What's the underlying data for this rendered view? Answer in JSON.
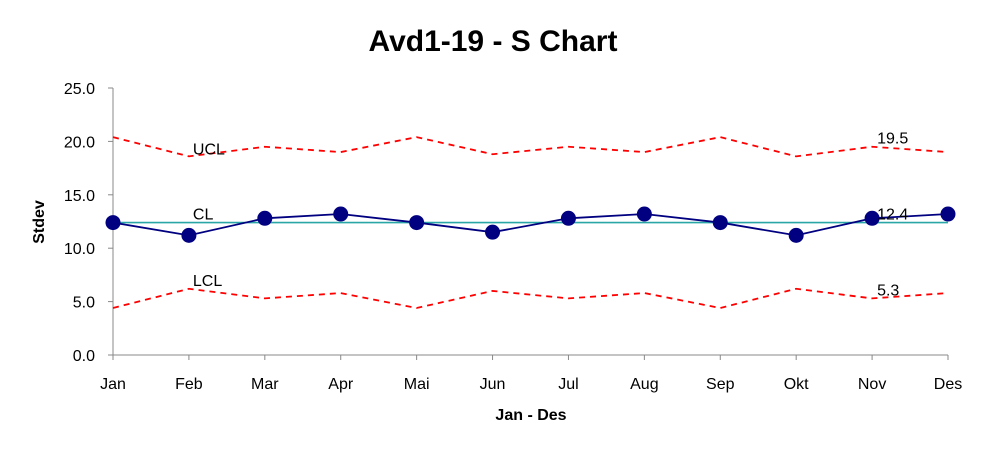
{
  "chart_data": {
    "type": "line",
    "title": "Avd1-19 - S Chart",
    "xlabel": "Jan - Des",
    "ylabel": "Stdev",
    "categories": [
      "Jan",
      "Feb",
      "Mar",
      "Apr",
      "Mai",
      "Jun",
      "Jul",
      "Aug",
      "Sep",
      "Okt",
      "Nov",
      "Des"
    ],
    "ylim": [
      0,
      25
    ],
    "yticks": [
      "0.0",
      "5.0",
      "10.0",
      "15.0",
      "20.0",
      "25.0"
    ],
    "grid": false,
    "series": [
      {
        "name": "",
        "role": "stdev",
        "color": "#000080",
        "style": "solid",
        "markers": true,
        "values": [
          12.4,
          11.2,
          12.8,
          13.2,
          12.4,
          11.5,
          12.8,
          13.2,
          12.4,
          11.2,
          12.8,
          13.2
        ]
      },
      {
        "name": "",
        "role": "ucl",
        "color": "#ff0000",
        "style": "dashed",
        "markers": false,
        "values": [
          20.4,
          18.6,
          19.5,
          19.0,
          20.4,
          18.8,
          19.5,
          19.0,
          20.4,
          18.6,
          19.5,
          19.0
        ]
      },
      {
        "name": "",
        "role": "cl",
        "color": "#2aa6a6",
        "style": "solid",
        "markers": false,
        "values": [
          12.4,
          12.4,
          12.4,
          12.4,
          12.4,
          12.4,
          12.4,
          12.4,
          12.4,
          12.4,
          12.4,
          12.4
        ]
      },
      {
        "name": "",
        "role": "lcl",
        "color": "#ff0000",
        "style": "dashed",
        "markers": false,
        "values": [
          4.4,
          6.2,
          5.3,
          5.8,
          4.4,
          6.0,
          5.3,
          5.8,
          4.4,
          6.2,
          5.3,
          5.8
        ]
      }
    ],
    "annotations": {
      "ucl_label": "UCL",
      "cl_label": "CL",
      "lcl_label": "LCL",
      "ucl_value": "19.5",
      "cl_value": "12.4",
      "lcl_value": "5.3"
    }
  }
}
